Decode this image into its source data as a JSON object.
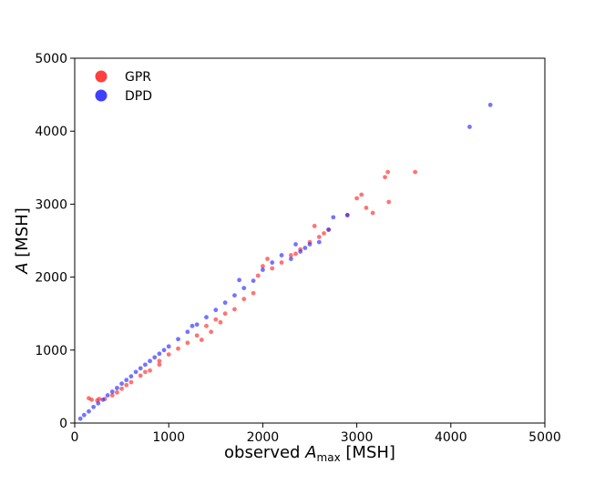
{
  "chart_data": {
    "type": "scatter",
    "xlabel": {
      "prefix": "observed ",
      "var": "A",
      "sub": "max",
      "unit": " [MSH]"
    },
    "ylabel": {
      "var": "A",
      "unit": " [MSH]"
    },
    "xlim": [
      0,
      5000
    ],
    "ylim": [
      0,
      5000
    ],
    "xticks": [
      "0",
      "1000",
      "2000",
      "3000",
      "4000",
      "5000"
    ],
    "yticks": [
      "0",
      "1000",
      "2000",
      "3000",
      "4000",
      "5000"
    ],
    "grid": false,
    "legend_position": "top-left",
    "series": [
      {
        "name": "GPR",
        "color": "#ff2a2a",
        "points": [
          [
            150,
            340
          ],
          [
            180,
            320
          ],
          [
            240,
            310
          ],
          [
            260,
            330
          ],
          [
            320,
            330
          ],
          [
            400,
            380
          ],
          [
            450,
            420
          ],
          [
            500,
            470
          ],
          [
            550,
            520
          ],
          [
            600,
            560
          ],
          [
            700,
            650
          ],
          [
            750,
            700
          ],
          [
            800,
            720
          ],
          [
            900,
            850
          ],
          [
            1000,
            940
          ],
          [
            1100,
            1020
          ],
          [
            1200,
            1100
          ],
          [
            1300,
            1200
          ],
          [
            1400,
            1330
          ],
          [
            1500,
            1420
          ],
          [
            1600,
            1500
          ],
          [
            1700,
            1560
          ],
          [
            1800,
            1700
          ],
          [
            1900,
            1780
          ],
          [
            1950,
            2020
          ],
          [
            2000,
            2150
          ],
          [
            2050,
            2250
          ],
          [
            2100,
            2120
          ],
          [
            2200,
            2200
          ],
          [
            2300,
            2300
          ],
          [
            2350,
            2320
          ],
          [
            2400,
            2380
          ],
          [
            2500,
            2480
          ],
          [
            2550,
            2700
          ],
          [
            2600,
            2550
          ],
          [
            2650,
            2600
          ],
          [
            2700,
            2650
          ],
          [
            2900,
            2850
          ],
          [
            3000,
            3080
          ],
          [
            3050,
            3130
          ],
          [
            3100,
            2950
          ],
          [
            3170,
            2880
          ],
          [
            3300,
            3370
          ],
          [
            3330,
            3440
          ],
          [
            3340,
            3030
          ],
          [
            3620,
            3440
          ],
          [
            1350,
            1140
          ],
          [
            1450,
            1250
          ],
          [
            1550,
            1380
          ],
          [
            900,
            800
          ]
        ]
      },
      {
        "name": "DPD",
        "color": "#2a2aff",
        "points": [
          [
            60,
            60
          ],
          [
            100,
            110
          ],
          [
            150,
            160
          ],
          [
            200,
            220
          ],
          [
            250,
            270
          ],
          [
            300,
            320
          ],
          [
            350,
            380
          ],
          [
            400,
            430
          ],
          [
            450,
            480
          ],
          [
            500,
            540
          ],
          [
            550,
            590
          ],
          [
            600,
            640
          ],
          [
            650,
            700
          ],
          [
            700,
            750
          ],
          [
            750,
            800
          ],
          [
            800,
            850
          ],
          [
            850,
            900
          ],
          [
            900,
            950
          ],
          [
            950,
            1000
          ],
          [
            1000,
            1050
          ],
          [
            1100,
            1150
          ],
          [
            1200,
            1250
          ],
          [
            1300,
            1350
          ],
          [
            1400,
            1450
          ],
          [
            1500,
            1550
          ],
          [
            1600,
            1650
          ],
          [
            1700,
            1750
          ],
          [
            1800,
            1850
          ],
          [
            1900,
            1950
          ],
          [
            2000,
            2100
          ],
          [
            2100,
            2200
          ],
          [
            2200,
            2300
          ],
          [
            2300,
            2250
          ],
          [
            2400,
            2350
          ],
          [
            2450,
            2400
          ],
          [
            2500,
            2450
          ],
          [
            2600,
            2480
          ],
          [
            2700,
            2650
          ],
          [
            2750,
            2820
          ],
          [
            2900,
            2850
          ],
          [
            4200,
            4060
          ],
          [
            4420,
            4360
          ],
          [
            1250,
            1330
          ],
          [
            1750,
            1960
          ],
          [
            2350,
            2450
          ]
        ]
      }
    ]
  }
}
